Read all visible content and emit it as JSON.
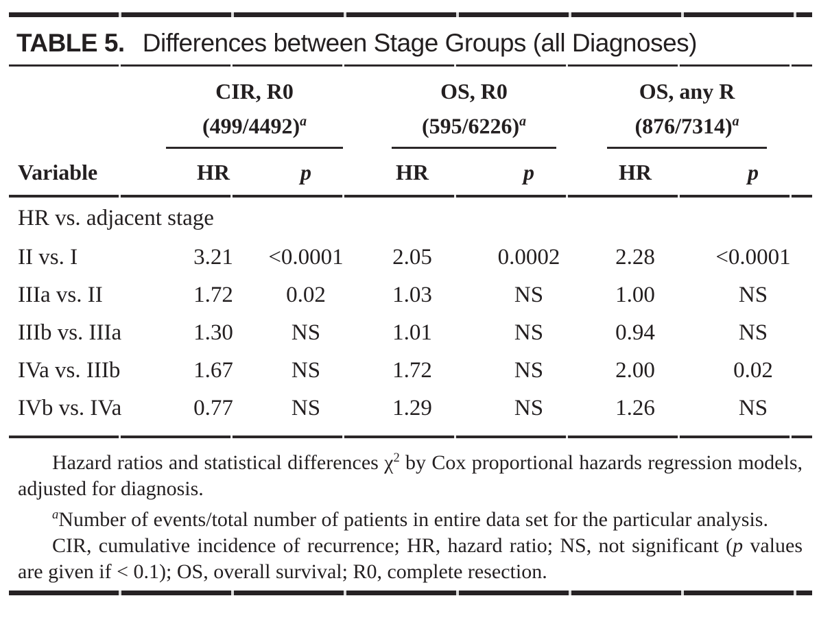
{
  "colors": {
    "text": "#231f20",
    "background": "#ffffff",
    "rule": "#262224"
  },
  "title": {
    "label": "TABLE 5.",
    "text": "Differences between Stage Groups (all Diagnoses)"
  },
  "table": {
    "group_headers": [
      {
        "line1": "CIR, R0",
        "line2": "(499/4492)",
        "footnote_marker": "a"
      },
      {
        "line1": "OS, R0",
        "line2": "(595/6226)",
        "footnote_marker": "a"
      },
      {
        "line1": "OS, any R",
        "line2": "(876/7314)",
        "footnote_marker": "a"
      }
    ],
    "sub_headers": {
      "variable": "Variable",
      "hr": "HR",
      "p": "p"
    },
    "section_label": "HR vs. adjacent stage",
    "rows": [
      {
        "variable": "II vs. I",
        "cir_r0_hr": "3.21",
        "cir_r0_p": "<0.0001",
        "os_r0_hr": "2.05",
        "os_r0_p": "0.0002",
        "os_any_r_hr": "2.28",
        "os_any_r_p": "<0.0001"
      },
      {
        "variable": "IIIa vs. II",
        "cir_r0_hr": "1.72",
        "cir_r0_p": "0.02",
        "os_r0_hr": "1.03",
        "os_r0_p": "NS",
        "os_any_r_hr": "1.00",
        "os_any_r_p": "NS"
      },
      {
        "variable": "IIIb vs. IIIa",
        "cir_r0_hr": "1.30",
        "cir_r0_p": "NS",
        "os_r0_hr": "1.01",
        "os_r0_p": "NS",
        "os_any_r_hr": "0.94",
        "os_any_r_p": "NS"
      },
      {
        "variable": "IVa vs. IIIb",
        "cir_r0_hr": "1.67",
        "cir_r0_p": "NS",
        "os_r0_hr": "1.72",
        "os_r0_p": "NS",
        "os_any_r_hr": "2.00",
        "os_any_r_p": "0.02"
      },
      {
        "variable": "IVb vs. IVa",
        "cir_r0_hr": "0.77",
        "cir_r0_p": "NS",
        "os_r0_hr": "1.29",
        "os_r0_p": "NS",
        "os_any_r_hr": "1.26",
        "os_any_r_p": "NS"
      }
    ]
  },
  "footnotes": {
    "methods": {
      "pre": "Hazard ratios and statistical differences χ",
      "sup": "2",
      "post": " by Cox proportional hazards regression models, adjusted for diagnosis."
    },
    "events": {
      "marker": "a",
      "text": "Number of events/total number of patients in entire data set for the particular analysis."
    },
    "abbreviations": {
      "pre": "CIR, cumulative incidence of recurrence; HR, hazard ratio; NS, not significant (",
      "italic": "p",
      "post": " values are given if < 0.1); OS, overall survival; R0, complete resection."
    }
  }
}
